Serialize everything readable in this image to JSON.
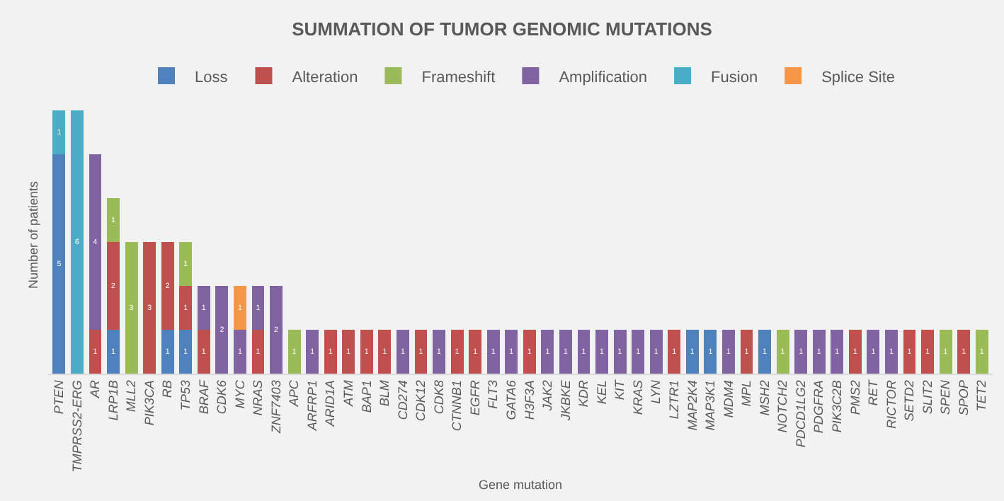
{
  "chart_data": {
    "type": "bar",
    "title": "SUMMATION OF TUMOR GENOMIC MUTATIONS",
    "xlabel": "Gene mutation",
    "ylabel": "Number of patients",
    "categories": [
      "PTEN",
      "TMPRSS2-ERG",
      "AR",
      "LRP1B",
      "MLL2",
      "PIK3CA",
      "RB",
      "TP53",
      "BRAF",
      "CDK6",
      "MYC",
      "NRAS",
      "ZNF7403",
      "APC",
      "ARFRP1",
      "ARID1A",
      "ATM",
      "BAP1",
      "BLM",
      "CD274",
      "CDK12",
      "CDK8",
      "CTNNB1",
      "EGFR",
      "FLT3",
      "GATA6",
      "H3F3A",
      "JAK2",
      "JKBKE",
      "KDR",
      "KEL",
      "KIT",
      "KRAS",
      "LYN",
      "LZTR1",
      "MAP2K4",
      "MAP3K1",
      "MDM4",
      "MPL",
      "MSH2",
      "NOTCH2",
      "PDCD1LG2",
      "PDGFRA",
      "PIK3C2B",
      "PMS2",
      "RET",
      "RICTOR",
      "SETD2",
      "SLIT2",
      "SPEN",
      "SPOP",
      "TET2"
    ],
    "series": [
      {
        "name": "Loss",
        "color": "#4f81bd",
        "values": [
          5,
          null,
          null,
          1,
          null,
          null,
          1,
          1,
          null,
          null,
          null,
          null,
          null,
          null,
          null,
          null,
          null,
          null,
          null,
          null,
          null,
          null,
          null,
          null,
          null,
          null,
          null,
          null,
          null,
          null,
          null,
          null,
          null,
          null,
          null,
          1,
          1,
          null,
          null,
          1,
          null,
          null,
          null,
          null,
          null,
          null,
          null,
          null,
          null,
          null,
          null,
          null
        ]
      },
      {
        "name": "Alteration",
        "color": "#c0504d",
        "values": [
          null,
          null,
          1,
          2,
          null,
          3,
          2,
          1,
          1,
          null,
          null,
          1,
          null,
          null,
          null,
          1,
          1,
          1,
          1,
          null,
          1,
          null,
          1,
          1,
          null,
          null,
          1,
          null,
          null,
          null,
          null,
          null,
          null,
          null,
          1,
          null,
          null,
          null,
          1,
          null,
          null,
          null,
          null,
          null,
          1,
          null,
          null,
          1,
          1,
          null,
          1,
          null
        ]
      },
      {
        "name": "Frameshift",
        "color": "#9bbb59",
        "values": [
          null,
          null,
          null,
          1,
          3,
          null,
          null,
          1,
          null,
          null,
          null,
          null,
          null,
          1,
          null,
          null,
          null,
          null,
          null,
          null,
          null,
          null,
          null,
          null,
          null,
          null,
          null,
          null,
          null,
          null,
          null,
          null,
          null,
          null,
          null,
          null,
          null,
          null,
          null,
          null,
          1,
          null,
          null,
          null,
          null,
          null,
          null,
          null,
          null,
          1,
          null,
          1
        ]
      },
      {
        "name": "Amplification",
        "color": "#8064a2",
        "values": [
          null,
          null,
          4,
          null,
          null,
          null,
          null,
          null,
          1,
          2,
          1,
          1,
          2,
          null,
          1,
          null,
          null,
          null,
          null,
          1,
          null,
          1,
          null,
          null,
          1,
          1,
          null,
          1,
          1,
          1,
          1,
          1,
          1,
          1,
          null,
          null,
          null,
          1,
          null,
          null,
          null,
          1,
          1,
          1,
          null,
          1,
          1,
          null,
          null,
          null,
          null,
          null
        ]
      },
      {
        "name": "Fusion",
        "color": "#4bacc6",
        "values": [
          1,
          6,
          null,
          null,
          null,
          null,
          null,
          null,
          null,
          null,
          null,
          null,
          null,
          null,
          null,
          null,
          null,
          null,
          null,
          null,
          null,
          null,
          null,
          null,
          null,
          null,
          null,
          null,
          null,
          null,
          null,
          null,
          null,
          null,
          null,
          null,
          null,
          null,
          null,
          null,
          null,
          null,
          null,
          null,
          null,
          null,
          null,
          null,
          null,
          null,
          null,
          null
        ]
      },
      {
        "name": "Splice Site",
        "color": "#f79646",
        "values": [
          null,
          null,
          null,
          null,
          null,
          null,
          null,
          null,
          null,
          null,
          1,
          null,
          null,
          null,
          null,
          null,
          null,
          null,
          null,
          null,
          null,
          null,
          null,
          null,
          null,
          null,
          null,
          null,
          null,
          null,
          null,
          null,
          null,
          null,
          null,
          null,
          null,
          null,
          null,
          null,
          null,
          null,
          null,
          null,
          null,
          null,
          null,
          null,
          null,
          null,
          null,
          null
        ]
      }
    ],
    "stacked": true,
    "data_labels": true,
    "tick_labels": "x",
    "grid": false,
    "legend": "top"
  }
}
